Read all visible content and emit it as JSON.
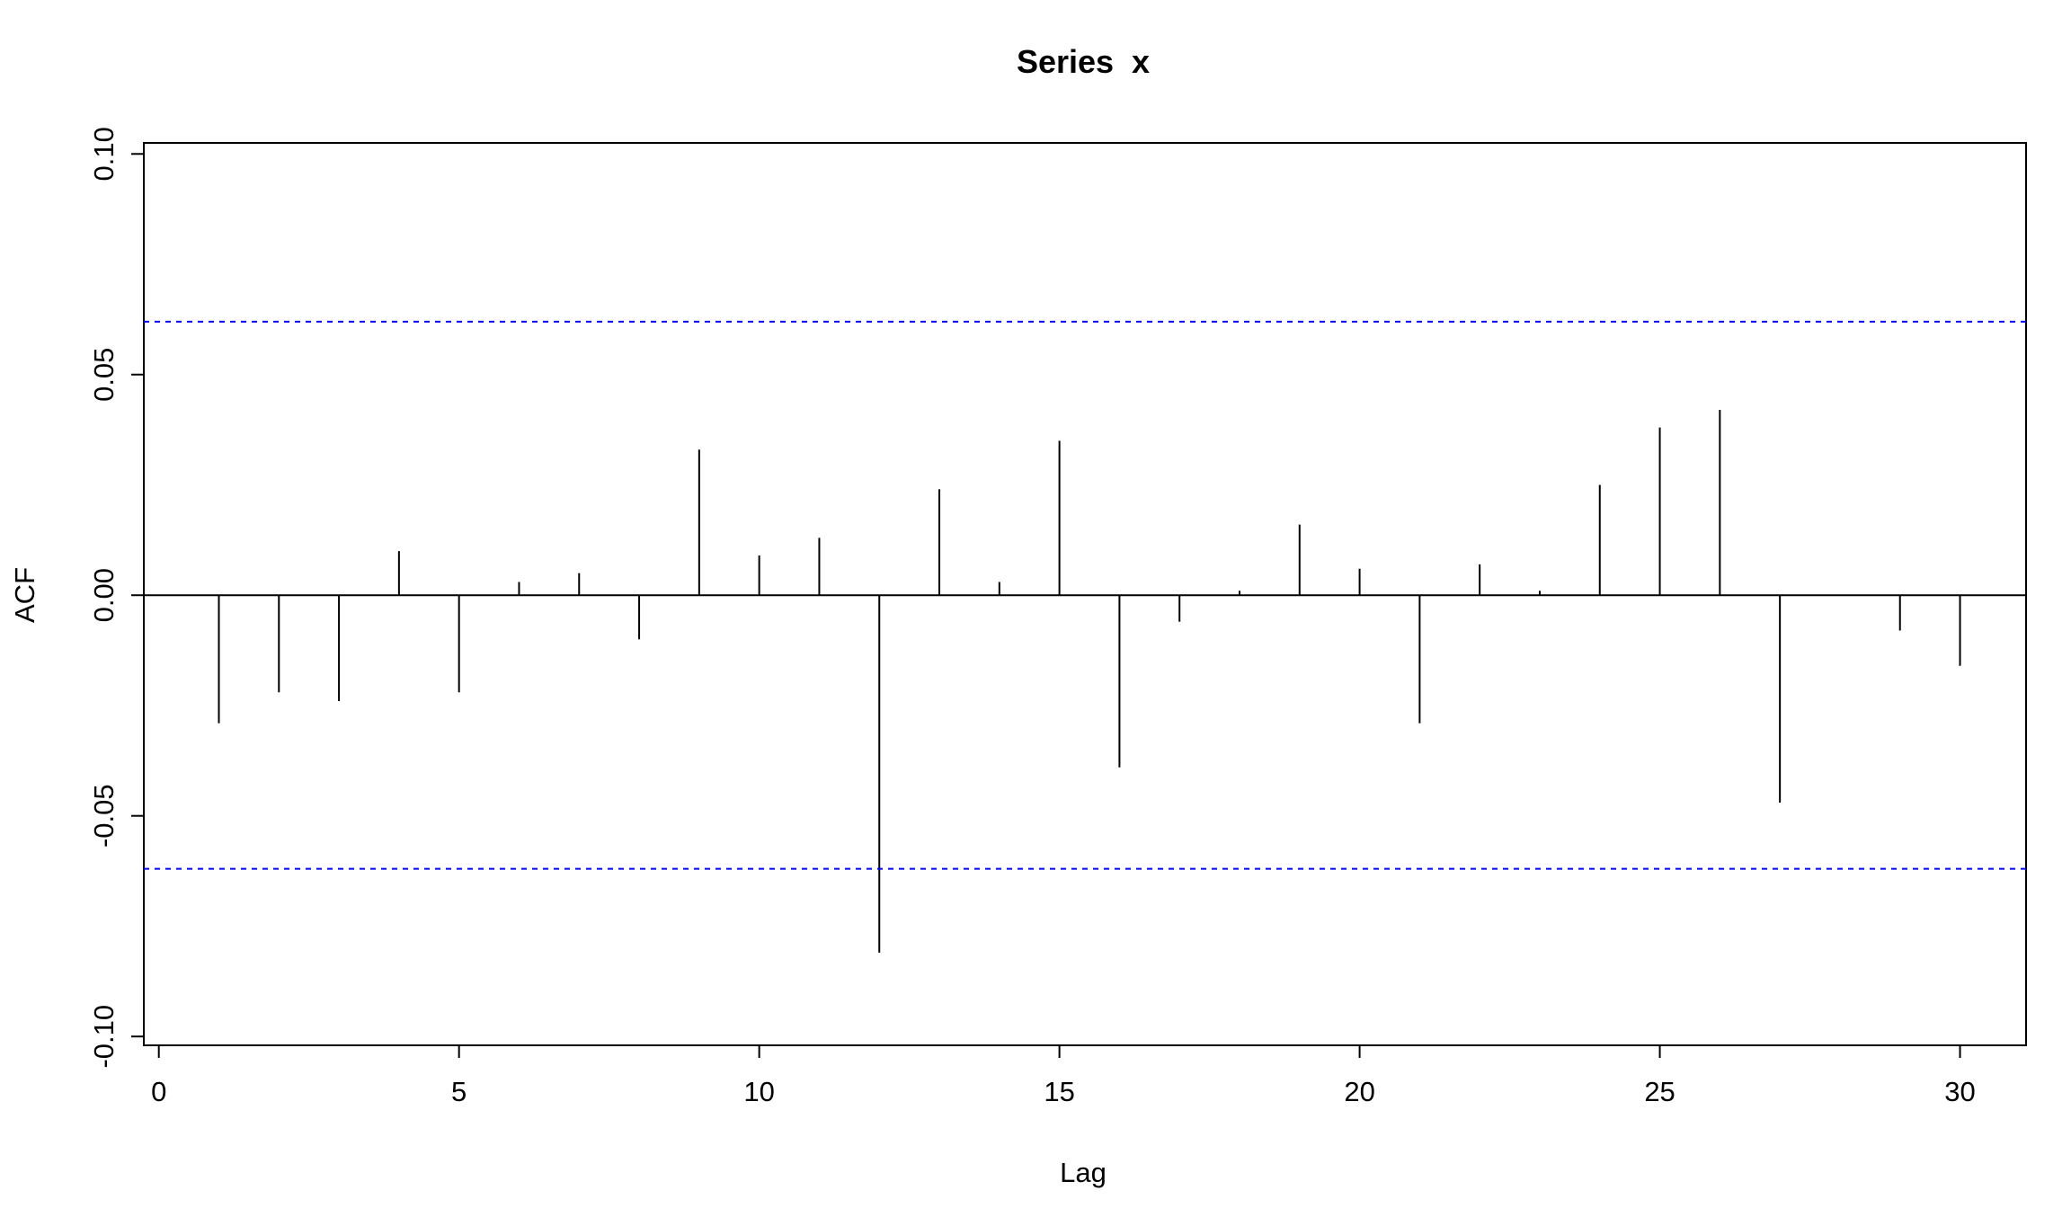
{
  "chart_data": {
    "type": "bar",
    "title": "Series  x",
    "xlabel": "Lag",
    "ylabel": "ACF",
    "xlim": [
      -0.25,
      31.1
    ],
    "ylim": [
      -0.102,
      0.1025
    ],
    "x_ticks": [
      0,
      5,
      10,
      15,
      20,
      25,
      30
    ],
    "x_tick_labels": [
      "0",
      "5",
      "10",
      "15",
      "20",
      "25",
      "30"
    ],
    "y_ticks": [
      -0.1,
      -0.05,
      0.0,
      0.05,
      0.1
    ],
    "y_tick_labels": [
      "-0.10",
      "-0.05",
      "0.00",
      "0.05",
      "0.10"
    ],
    "confidence_bound": 0.062,
    "confidence_color": "#0000ff",
    "bar_color": "#000000",
    "grid": false,
    "legend": "none",
    "lags": [
      0,
      1,
      2,
      3,
      4,
      5,
      6,
      7,
      8,
      9,
      10,
      11,
      12,
      13,
      14,
      15,
      16,
      17,
      18,
      19,
      20,
      21,
      22,
      23,
      24,
      25,
      26,
      27,
      28,
      29,
      30
    ],
    "acf": [
      0.0,
      -0.029,
      -0.022,
      -0.024,
      0.01,
      -0.022,
      0.003,
      0.005,
      -0.01,
      0.033,
      0.009,
      0.013,
      -0.081,
      0.024,
      0.003,
      0.035,
      -0.039,
      -0.006,
      0.001,
      0.016,
      0.006,
      -0.029,
      0.007,
      0.001,
      0.025,
      0.038,
      0.042,
      -0.047,
      0.0,
      -0.008,
      -0.016
    ]
  }
}
